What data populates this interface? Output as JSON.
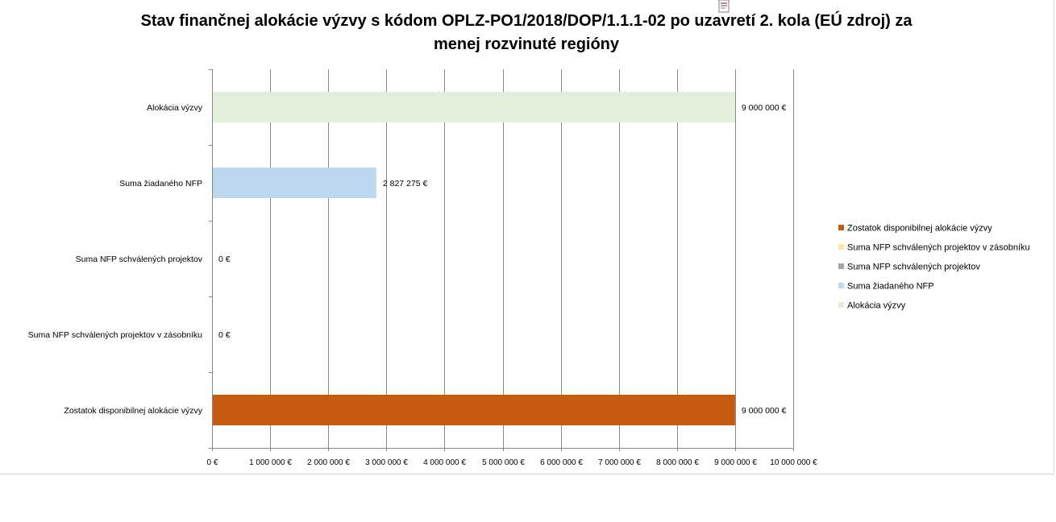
{
  "chart_data": {
    "type": "bar",
    "orientation": "horizontal",
    "title_line1": "Stav finančnej alokácie výzvy s kódom OPLZ-PO1/2018/DOP/1.1.1-02 po uzavretí 2. kola (EÚ zdroj) za",
    "title_line2": "menej rozvinuté regióny",
    "categories": [
      "Alokácia výzvy",
      "Suma žiadaného NFP",
      "Suma NFP schválených projektov",
      "Suma NFP schválených projektov v zásobníku",
      "Zostatok disponibilnej alokácie výzvy"
    ],
    "values": [
      9000000,
      2827275,
      0,
      0,
      9000000
    ],
    "data_labels": [
      "9 000 000 €",
      "2 827 275 €",
      "0 €",
      "0 €",
      "9 000 000 €"
    ],
    "colors": [
      "#e2efda",
      "#bdd7ee",
      "#a5a5a5",
      "#ffe699",
      "#c55a11"
    ],
    "xlim": [
      0,
      10000000
    ],
    "x_ticks": [
      "0 €",
      "1 000 000 €",
      "2 000 000 €",
      "3 000 000 €",
      "4 000 000 €",
      "5 000 000 €",
      "6 000 000 €",
      "7 000 000 €",
      "8 000 000 €",
      "9 000 000 €",
      "10 000 000 €"
    ],
    "grid": "vertical",
    "legend_position": "right",
    "legend": [
      {
        "label": "Zostatok disponibilnej alokácie výzvy",
        "color": "#c55a11"
      },
      {
        "label": "Suma NFP schválených projektov v zásobníku",
        "color": "#ffe699"
      },
      {
        "label": "Suma NFP schválených projektov",
        "color": "#a5a5a5"
      },
      {
        "label": "Suma žiadaného NFP",
        "color": "#bdd7ee"
      },
      {
        "label": "Alokácia výzvy",
        "color": "#e2efda"
      }
    ]
  }
}
